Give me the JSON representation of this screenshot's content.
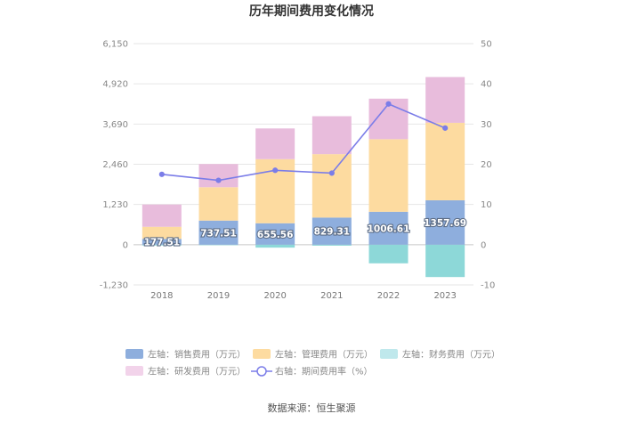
{
  "chart_data": {
    "type": "bar",
    "title": "历年期间费用变化情况",
    "categories": [
      "2018",
      "2019",
      "2020",
      "2021",
      "2022",
      "2023"
    ],
    "left_axis": {
      "ylim": [
        -1230,
        6150
      ],
      "ticks": [
        "6,150",
        "4,920",
        "3,690",
        "2,460",
        "1,230",
        "0",
        "-1,230"
      ],
      "tick_values": [
        6150,
        4920,
        3690,
        2460,
        1230,
        0,
        -1230
      ]
    },
    "right_axis": {
      "ylim": [
        -10,
        50
      ],
      "ticks": [
        "50",
        "40",
        "30",
        "20",
        "10",
        "0",
        "-10"
      ],
      "tick_values": [
        50,
        40,
        30,
        20,
        10,
        0,
        -10
      ]
    },
    "series": [
      {
        "name": "左轴：销售费用（万元）",
        "kind": "bar",
        "axis": "left",
        "color": "#8eaedd",
        "values": [
          177.51,
          737.51,
          655.56,
          829.31,
          1006.61,
          1357.69
        ],
        "labels": [
          "177.51",
          "737.51",
          "655.56",
          "829.31",
          "1006.61",
          "1357.69"
        ]
      },
      {
        "name": "左轴：管理费用（万元）",
        "kind": "bar",
        "axis": "left",
        "color": "#fddba0",
        "values": [
          370,
          1020,
          1960,
          1940,
          2220,
          2370
        ]
      },
      {
        "name": "左轴：财务费用（万元）",
        "kind": "bar",
        "axis": "left",
        "color": "#8dd8d8",
        "values": [
          -25,
          -15,
          -90,
          -30,
          -570,
          -990
        ]
      },
      {
        "name": "左轴：研发费用（万元）",
        "kind": "bar",
        "axis": "left",
        "color": "#e8bcdc",
        "values": [
          680,
          710,
          940,
          1160,
          1240,
          1400
        ]
      },
      {
        "name": "右轴：期间费用率（%）",
        "kind": "line",
        "axis": "right",
        "color": "#7b7de8",
        "values": [
          17.5,
          16.0,
          18.5,
          17.8,
          35.0,
          29.0
        ]
      }
    ]
  },
  "legend": {
    "items": [
      {
        "label": "左轴：销售费用（万元）",
        "color": "#8eaedd",
        "type": "box"
      },
      {
        "label": "左轴：管理费用（万元）",
        "color": "#fddba0",
        "type": "box"
      },
      {
        "label": "左轴：财务费用（万元）",
        "color": "#bfe8ec",
        "type": "box"
      },
      {
        "label": "左轴：研发费用（万元）",
        "color": "#f2d3ea",
        "type": "box"
      },
      {
        "label": "右轴：期间费用率（%）",
        "color": "#7b7de8",
        "type": "line"
      }
    ]
  },
  "source": "数据来源：恒生聚源"
}
